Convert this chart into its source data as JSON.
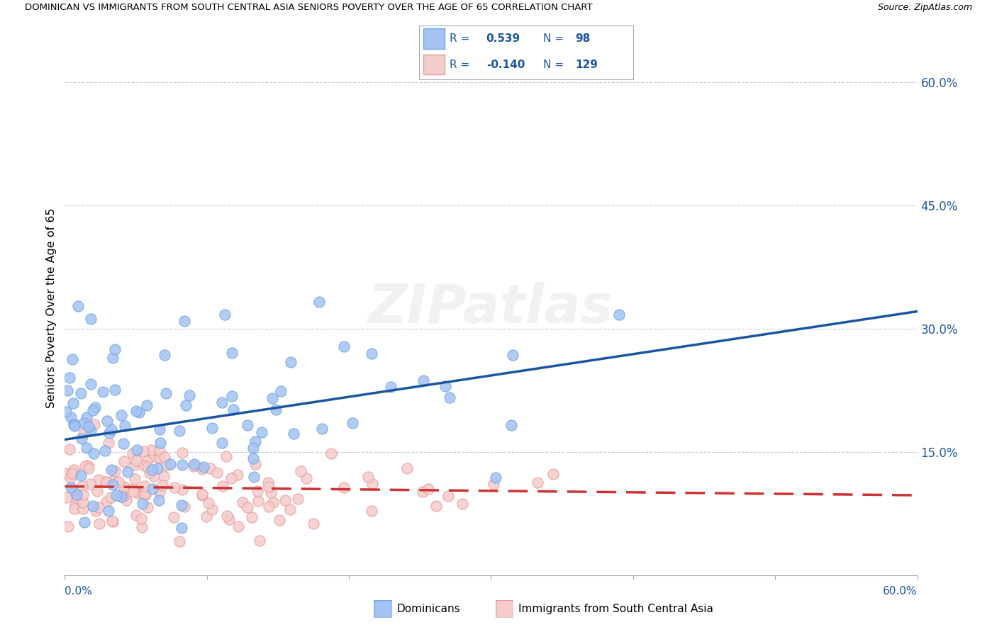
{
  "title": "DOMINICAN VS IMMIGRANTS FROM SOUTH CENTRAL ASIA SENIORS POVERTY OVER THE AGE OF 65 CORRELATION CHART",
  "source": "Source: ZipAtlas.com",
  "ylabel": "Seniors Poverty Over the Age of 65",
  "right_ytick_vals": [
    0.15,
    0.3,
    0.45,
    0.6
  ],
  "right_ytick_labels": [
    "15.0%",
    "30.0%",
    "45.0%",
    "60.0%"
  ],
  "xlim": [
    0.0,
    0.6
  ],
  "ylim": [
    0.0,
    0.65
  ],
  "blue_face": "#a4c2f4",
  "blue_edge": "#6fa8dc",
  "pink_face": "#f4cccc",
  "pink_edge": "#ea9999",
  "line_blue": "#1a56a0",
  "line_pink": "#cc3333",
  "text_blue": "#1a56a0",
  "grid_color": "#cccccc",
  "watermark": "ZIPatlas",
  "label1": "Dominicans",
  "label2": "Immigrants from South Central Asia",
  "legend_R1": "0.539",
  "legend_N1": "98",
  "legend_R2": "-0.140",
  "legend_N2": "129",
  "blue_N": 98,
  "pink_N": 129,
  "blue_intercept": 0.165,
  "blue_slope": 0.26,
  "pink_intercept": 0.108,
  "pink_slope": -0.018
}
